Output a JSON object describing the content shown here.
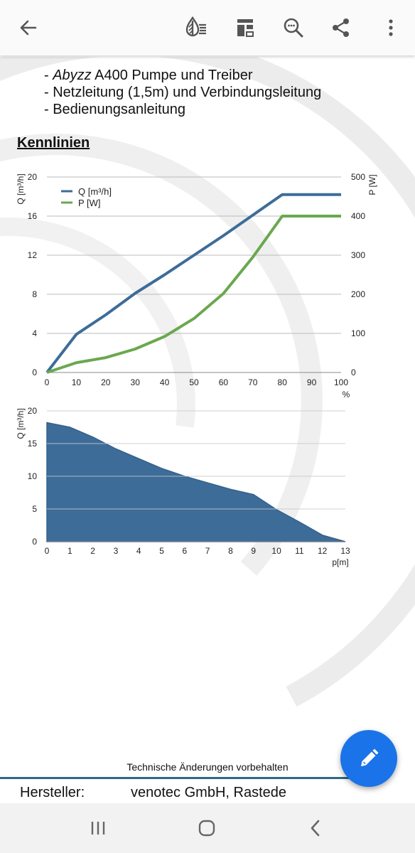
{
  "toolbar": {
    "icons": [
      "back-arrow-icon",
      "reading-mode-icon",
      "page-layout-icon",
      "search-icon",
      "share-icon",
      "more-vert-icon"
    ]
  },
  "document": {
    "bullets": [
      {
        "emphasis": "Abyzz",
        "text": " A400 Pumpe und Treiber"
      },
      {
        "emphasis": "",
        "text": "Netzleitung (1,5m) und Verbindungsleitung"
      },
      {
        "emphasis": "",
        "text": "Bedienungsanleitung"
      }
    ],
    "section_title": "Kennlinien",
    "footer_note": "Technische Änderungen vorbehalten",
    "manufacturer_label": "Hersteller:",
    "manufacturer_value": "venotec GmbH, Rastede"
  },
  "chart_data": [
    {
      "type": "line",
      "x": [
        0,
        10,
        20,
        30,
        40,
        50,
        60,
        70,
        80,
        90,
        100
      ],
      "xticks": [
        "0",
        "10",
        "20",
        "30",
        "40",
        "50",
        "60",
        "70",
        "80",
        "90",
        "100"
      ],
      "xlabel": "%",
      "xlim": [
        0,
        100
      ],
      "y_left": {
        "label": "Q [m³/h]",
        "lim": [
          0,
          20
        ],
        "ticks": [
          "0",
          "4",
          "8",
          "12",
          "16",
          "20"
        ]
      },
      "y_right": {
        "label": "P [W]",
        "lim": [
          0,
          500
        ],
        "ticks": [
          "0",
          "100",
          "200",
          "300",
          "400",
          "500"
        ]
      },
      "series": [
        {
          "name": "Q [m³/h]",
          "axis": "left",
          "color": "#3d6c99",
          "values": [
            0,
            3.9,
            5.9,
            8.1,
            10.0,
            12.0,
            14.0,
            16.1,
            18.2,
            18.2,
            18.2
          ]
        },
        {
          "name": "P [W]",
          "axis": "right",
          "color": "#6aa84f",
          "values": [
            0,
            25,
            38,
            60,
            92,
            138,
            202,
            295,
            400,
            400,
            400
          ]
        }
      ],
      "legend": "top-left",
      "grid": true
    },
    {
      "type": "area",
      "x": [
        0,
        1,
        2,
        3,
        4,
        5,
        6,
        7,
        8,
        9,
        10,
        11,
        12,
        13
      ],
      "xticks": [
        "0",
        "1",
        "2",
        "3",
        "4",
        "5",
        "6",
        "7",
        "8",
        "9",
        "10",
        "11",
        "12",
        "13"
      ],
      "xlabel": "p[m]",
      "xlim": [
        0,
        13
      ],
      "ylabel": "Q [m³/h]",
      "ylim": [
        0,
        20
      ],
      "yticks": [
        "0",
        "5",
        "10",
        "15",
        "20"
      ],
      "series": [
        {
          "color": "#3d6c99",
          "values": [
            18.2,
            17.5,
            16.0,
            14.2,
            12.7,
            11.2,
            10.0,
            9.0,
            8.0,
            7.2,
            4.9,
            3.0,
            1.0,
            0
          ]
        }
      ],
      "grid": true
    }
  ],
  "nav": {
    "icons": [
      "recent-apps-icon",
      "home-icon",
      "back-icon"
    ]
  },
  "fab": {
    "icon": "edit-pencil-icon",
    "color": "#1a73e8"
  }
}
